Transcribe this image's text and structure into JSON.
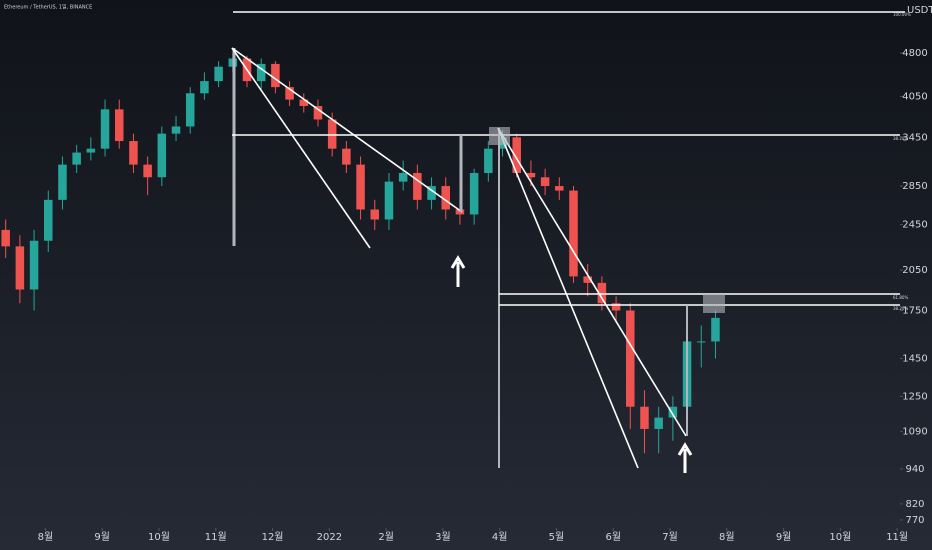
{
  "chart_data": {
    "type": "candlestick",
    "title": "Ethereum / TetherUS, 1일, BINANCE",
    "y_axis_label": "USDT",
    "log_scale": true,
    "up_color": "#26a69a",
    "down_color": "#ef5350",
    "xlim": [
      0.2,
      16.05
    ],
    "xticks": [
      {
        "value": 1,
        "label": "8월"
      },
      {
        "value": 2,
        "label": "9월"
      },
      {
        "value": 3,
        "label": "10월"
      },
      {
        "value": 4,
        "label": "11월"
      },
      {
        "value": 5,
        "label": "12월"
      },
      {
        "value": 6,
        "label": "2022"
      },
      {
        "value": 7,
        "label": "2월"
      },
      {
        "value": 8,
        "label": "3월"
      },
      {
        "value": 9,
        "label": "4월"
      },
      {
        "value": 10,
        "label": "5월"
      },
      {
        "value": 11,
        "label": "6월"
      },
      {
        "value": 12,
        "label": "7월"
      },
      {
        "value": 13,
        "label": "8월"
      },
      {
        "value": 14,
        "label": "9월"
      },
      {
        "value": 15,
        "label": "10월"
      },
      {
        "value": 16,
        "label": "11월"
      }
    ],
    "ylim": [
      746,
      5910
    ],
    "yticks": [
      770,
      820,
      940,
      1090,
      1250,
      1450,
      1750,
      2050,
      2450,
      2850,
      3450,
      4050,
      4800
    ],
    "annotations": [
      "100.00%",
      "38.20%",
      "61.80%",
      "38.20%"
    ],
    "x": [
      0.3,
      0.55,
      0.8,
      1.05,
      1.3,
      1.55,
      1.8,
      2.05,
      2.3,
      2.55,
      2.8,
      3.05,
      3.3,
      3.55,
      3.8,
      4.05,
      4.3,
      4.55,
      4.8,
      5.05,
      5.3,
      5.55,
      5.8,
      6.05,
      6.3,
      6.55,
      6.8,
      7.05,
      7.3,
      7.55,
      7.8,
      8.05,
      8.3,
      8.55,
      8.8,
      9.05,
      9.3,
      9.55,
      9.8,
      10.05,
      10.3,
      10.55,
      10.8,
      11.05,
      11.3,
      11.55,
      11.8,
      12.05,
      12.3,
      12.55,
      12.8
    ],
    "open": [
      2400,
      2250,
      1900,
      2300,
      2700,
      3100,
      3250,
      3300,
      3850,
      3400,
      3100,
      2950,
      3500,
      3600,
      4100,
      4300,
      4550,
      4700,
      4300,
      4600,
      4200,
      4000,
      3900,
      3700,
      3300,
      3100,
      2600,
      2500,
      2900,
      3000,
      2700,
      2850,
      2600,
      2550,
      3000,
      3300,
      3450,
      3000,
      2950,
      2850,
      2800,
      2000,
      1950,
      1800,
      1750,
      1200,
      1100,
      1150,
      1200,
      1550,
      1550
    ],
    "high": [
      2500,
      2350,
      2400,
      2800,
      3200,
      3350,
      3450,
      4000,
      4000,
      3500,
      3200,
      3600,
      3750,
      4200,
      4450,
      4650,
      4800,
      4750,
      4700,
      4650,
      4300,
      4100,
      4000,
      3800,
      3400,
      3200,
      2700,
      3000,
      3150,
      3100,
      2950,
      2950,
      2700,
      3050,
      3400,
      3550,
      3500,
      3150,
      3050,
      2950,
      2850,
      2100,
      2000,
      1850,
      1800,
      1280,
      1200,
      1250,
      1700,
      1650,
      1750
    ],
    "low": [
      2150,
      1800,
      1750,
      2200,
      2600,
      3000,
      3150,
      3200,
      3300,
      3000,
      2750,
      2850,
      3400,
      3500,
      4000,
      4200,
      4450,
      4200,
      4150,
      4100,
      3900,
      3800,
      3600,
      3200,
      3000,
      2500,
      2400,
      2400,
      2800,
      2600,
      2600,
      2500,
      2450,
      2450,
      2900,
      3200,
      2950,
      2850,
      2750,
      2700,
      1950,
      1850,
      1750,
      1680,
      1100,
      1000,
      1000,
      1050,
      1150,
      1400,
      1450
    ],
    "close": [
      2250,
      1900,
      2300,
      2700,
      3100,
      3250,
      3300,
      3850,
      3400,
      3100,
      2950,
      3500,
      3600,
      4100,
      4300,
      4550,
      4700,
      4300,
      4600,
      4200,
      4000,
      3900,
      3700,
      3300,
      3100,
      2600,
      2500,
      2900,
      3000,
      2700,
      2850,
      2600,
      2550,
      3000,
      3300,
      3450,
      3000,
      2950,
      2850,
      2800,
      2000,
      1950,
      1800,
      1750,
      1200,
      1100,
      1150,
      1200,
      1550,
      1550,
      1700
    ]
  }
}
